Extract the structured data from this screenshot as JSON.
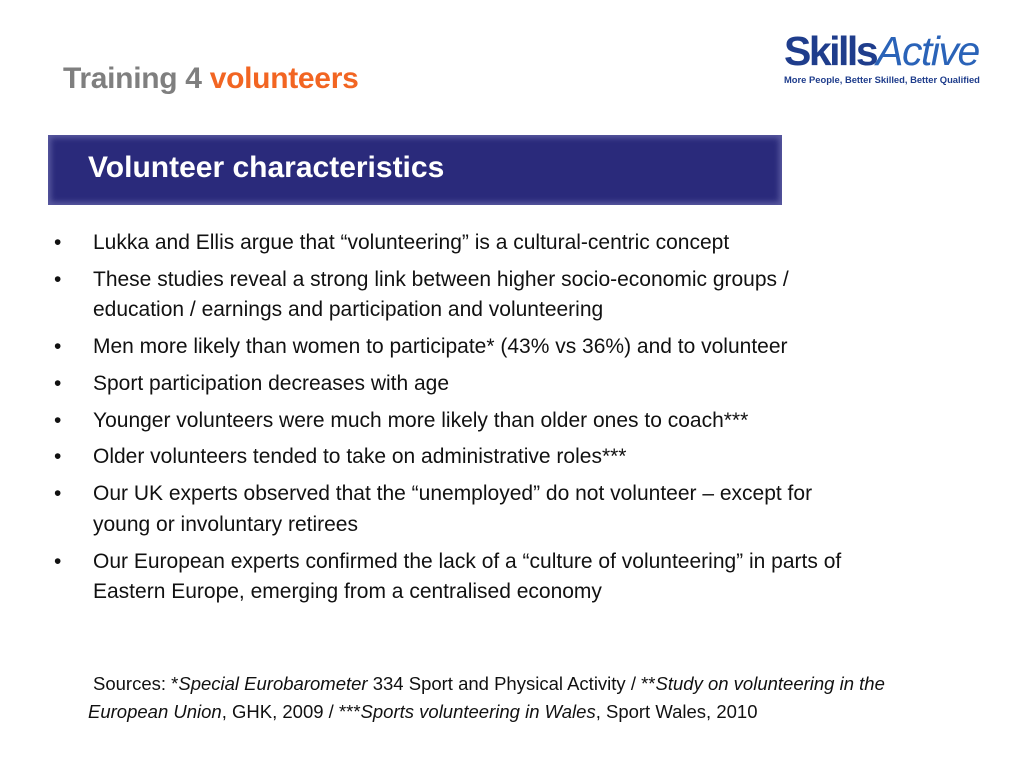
{
  "header": {
    "title_part1": "Training 4 ",
    "title_part2": "volunteers"
  },
  "logo": {
    "name_part1": "Skills",
    "name_part2": "Active",
    "tagline": "More People, Better Skilled, Better Qualified"
  },
  "banner": {
    "heading": "Volunteer characteristics"
  },
  "colors": {
    "title_gray": "#7f7f7f",
    "title_orange": "#f26522",
    "banner": "#2a2a7b",
    "logo_blue": "#1f3d8c"
  },
  "bullet_symbol": "•",
  "bullets": [
    {
      "lines": [
        "Lukka and Ellis argue that “volunteering” is a cultural-centric concept"
      ]
    },
    {
      "lines": [
        "These studies reveal a strong link between higher socio-economic groups /",
        "education / earnings and participation and volunteering"
      ]
    },
    {
      "lines": [
        "Men more likely than women to participate* (43% vs 36%) and to volunteer"
      ]
    },
    {
      "lines": [
        "Sport participation decreases with age"
      ]
    },
    {
      "lines": [
        "Younger volunteers were much more likely than older ones to coach***"
      ]
    },
    {
      "lines": [
        "Older volunteers tended to take on administrative roles***"
      ]
    },
    {
      "lines": [
        "Our UK experts observed that the “unemployed” do not volunteer – except for",
        "young or involuntary retirees"
      ]
    },
    {
      "lines": [
        "Our European experts confirmed the lack of a “culture of volunteering” in parts of",
        "Eastern Europe, emerging from a centralised economy"
      ]
    }
  ],
  "sources": {
    "s1": "Sources: *",
    "s2": "Special Eurobarometer",
    "s3": " 334 Sport and Physical Activity / **",
    "s4": "Study on volunteering in the",
    "s5": "European Union",
    "s6": ", GHK, 2009 / ***",
    "s7": "Sports volunteering in Wales",
    "s8": ", Sport Wales, 2010"
  }
}
